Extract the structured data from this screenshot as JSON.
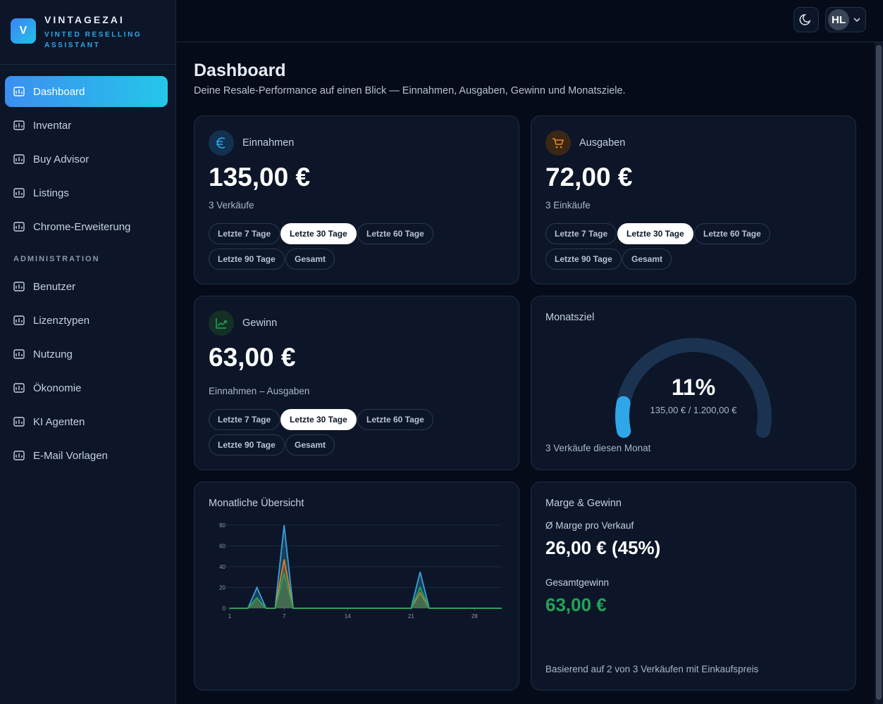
{
  "sidebar": {
    "brand": {
      "logo": "V",
      "name": "VINTAGEZAI",
      "tagline": "VINTED RESELLING ASSISTANT"
    },
    "nav": [
      "Dashboard",
      "Inventar",
      "Buy Advisor",
      "Listings",
      "Chrome-Erweiterung"
    ],
    "active": 0,
    "section": "ADMINISTRATION",
    "admin_nav": [
      "Benutzer",
      "Lizenztypen",
      "Nutzung",
      "Ökonomie",
      "KI Agenten",
      "E-Mail Vorlagen"
    ]
  },
  "topbar": {
    "avatar": "HL"
  },
  "header": {
    "title": "Dashboard",
    "subtitle": "Deine Resale-Performance auf einen Blick — Einnahmen, Ausgaben, Gewinn und Monatsziele."
  },
  "cards": {
    "income": {
      "title": "Einnahmen",
      "value": "135,00 €",
      "note": "3 Verkäufe",
      "filters": [
        "Letzte 7 Tage",
        "Letzte 30 Tage",
        "Letzte 60 Tage",
        "Letzte 90 Tage",
        "Gesamt"
      ],
      "active": 1
    },
    "expenses": {
      "title": "Ausgaben",
      "value": "72,00 €",
      "note": "3 Einkäufe",
      "filters": [
        "Letzte 7 Tage",
        "Letzte 30 Tage",
        "Letzte 60 Tage",
        "Letzte 90 Tage",
        "Gesamt"
      ],
      "active": 1
    },
    "profit": {
      "title": "Gewinn",
      "value": "63,00 €",
      "note": "Einnahmen – Ausgaben",
      "filters": [
        "Letzte 7 Tage",
        "Letzte 30 Tage",
        "Letzte 60 Tage",
        "Letzte 90 Tage",
        "Gesamt"
      ],
      "active": 1
    },
    "goal": {
      "title": "Monatsziel",
      "value": 11,
      "label": "11%",
      "detail": "135,00 € / 1.200,00 €",
      "note": "3 Verkäufe diesen Monat"
    },
    "margin": {
      "title": "Marge & Gewinn",
      "margin_label": "Ø Marge pro Verkauf",
      "margin_value": "26,00 € (45%)",
      "total_label": "Gesamtgewinn",
      "total_value": "63,00 €",
      "note": "Basierend auf 2 von 3 Verkäufen mit Einkaufspreis"
    }
  },
  "chart_data": {
    "type": "area",
    "title": "Monatliche Übersicht",
    "x": [
      1,
      2,
      3,
      4,
      5,
      6,
      7,
      8,
      9,
      10,
      11,
      12,
      13,
      14,
      15,
      16,
      17,
      18,
      19,
      20,
      21,
      22,
      23,
      24,
      25,
      26,
      27,
      28,
      29,
      30,
      31
    ],
    "xlim": [
      1,
      31
    ],
    "xticks": [
      1,
      7,
      14,
      21,
      28
    ],
    "ylim": [
      0,
      80
    ],
    "yticks": [
      0,
      20,
      40,
      60,
      80
    ],
    "grid": true,
    "series": [
      {
        "color": "#3b9fd6",
        "values": [
          0,
          0,
          0,
          20,
          0,
          0,
          80,
          0,
          0,
          0,
          0,
          0,
          0,
          0,
          0,
          0,
          0,
          0,
          0,
          0,
          0,
          35,
          0,
          0,
          0,
          0,
          0,
          0,
          0,
          0,
          0
        ]
      },
      {
        "color": "#d9822b",
        "values": [
          0,
          0,
          0,
          10,
          0,
          0,
          47,
          0,
          0,
          0,
          0,
          0,
          0,
          0,
          0,
          0,
          0,
          0,
          0,
          0,
          0,
          15,
          0,
          0,
          0,
          0,
          0,
          0,
          0,
          0,
          0
        ]
      },
      {
        "color": "#22a35a",
        "values": [
          0,
          0,
          0,
          10,
          0,
          0,
          33,
          0,
          0,
          0,
          0,
          0,
          0,
          0,
          0,
          0,
          0,
          0,
          0,
          0,
          0,
          20,
          0,
          0,
          0,
          0,
          0,
          0,
          0,
          0,
          0
        ]
      }
    ]
  }
}
